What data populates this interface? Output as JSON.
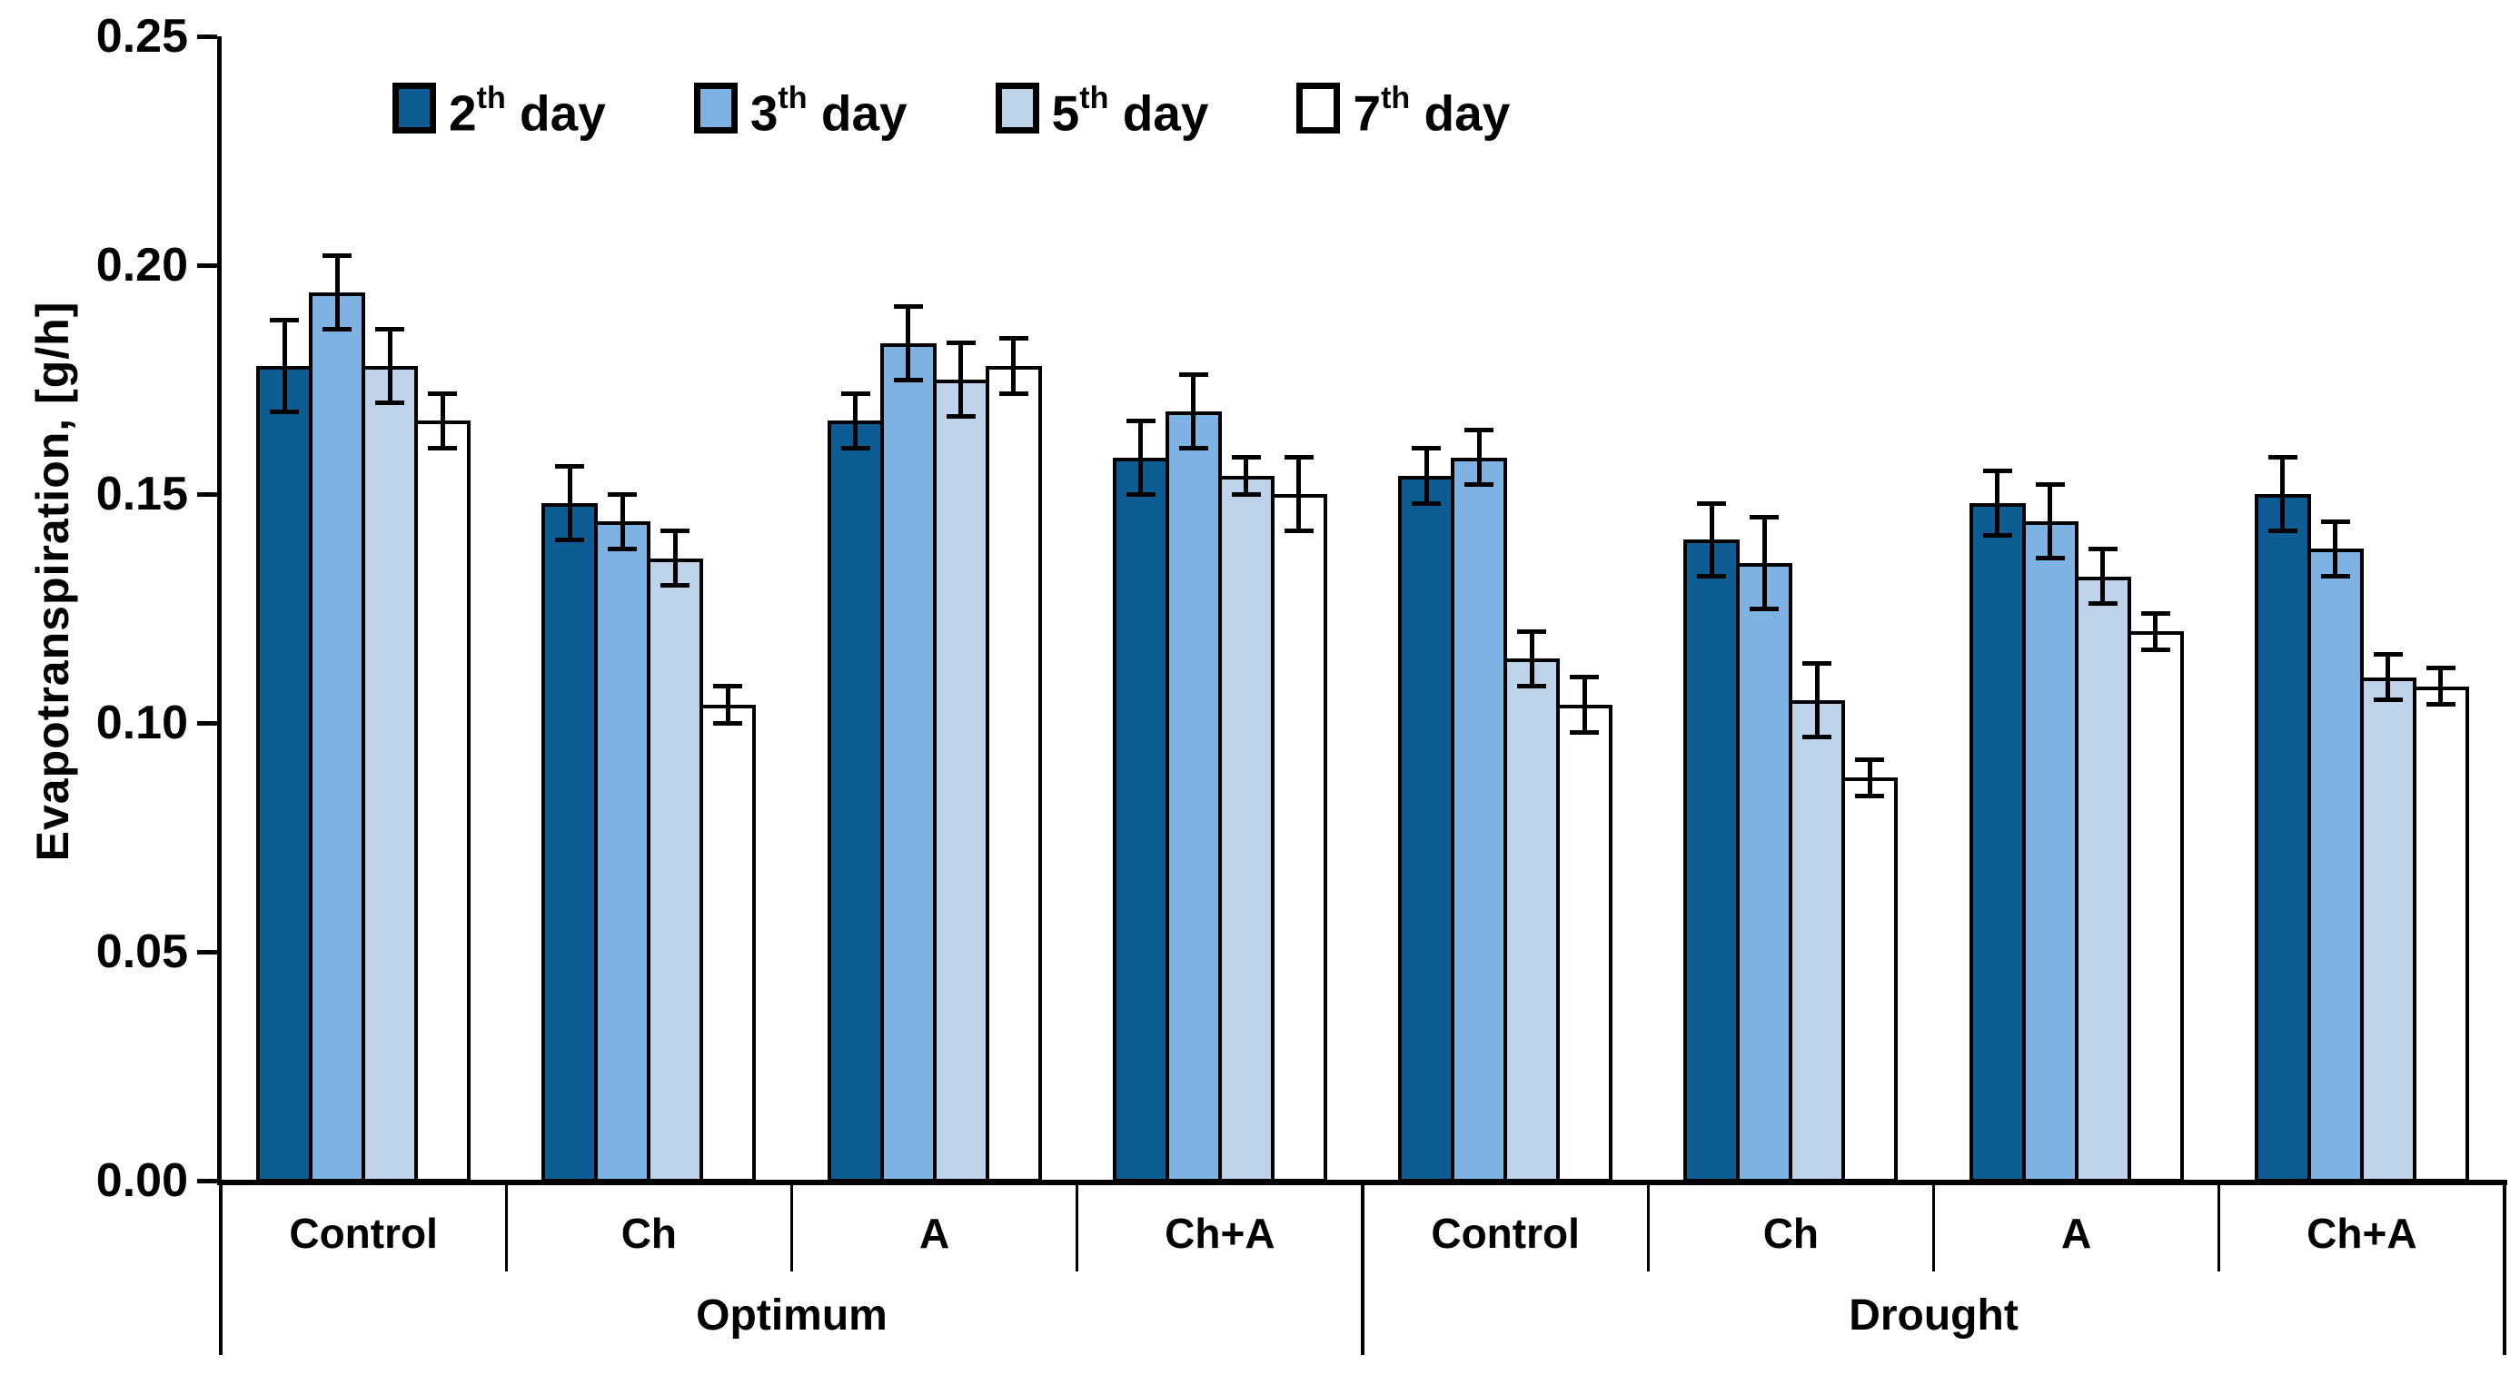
{
  "chart_data": {
    "type": "bar",
    "title": "",
    "ylabel": "Evapotranspiration, [g/h]",
    "ylim": [
      0,
      0.25
    ],
    "yticks": [
      "0.00",
      "0.05",
      "0.10",
      "0.15",
      "0.20",
      "0.25"
    ],
    "grid": false,
    "legend_position": "top",
    "categories": [
      "Control",
      "Ch",
      "A",
      "Ch+A",
      "Control",
      "Ch",
      "A",
      "Ch+A"
    ],
    "group_labels": [
      "Optimum",
      "Drought"
    ],
    "groups_span": [
      4,
      4
    ],
    "bar_border_color": "#000000",
    "series": [
      {
        "name": "2th day",
        "color": "#0e5c94",
        "values": [
          0.178,
          0.148,
          0.166,
          0.158,
          0.154,
          0.14,
          0.148,
          0.15
        ],
        "errors": [
          0.01,
          0.008,
          0.006,
          0.008,
          0.006,
          0.008,
          0.007,
          0.008
        ]
      },
      {
        "name": "3th day",
        "color": "#7eb2e3",
        "values": [
          0.194,
          0.144,
          0.183,
          0.168,
          0.158,
          0.135,
          0.144,
          0.138
        ],
        "errors": [
          0.008,
          0.006,
          0.008,
          0.008,
          0.006,
          0.01,
          0.008,
          0.006
        ]
      },
      {
        "name": "5th day",
        "color": "#bed3ea",
        "values": [
          0.178,
          0.136,
          0.175,
          0.154,
          0.114,
          0.105,
          0.132,
          0.11
        ],
        "errors": [
          0.008,
          0.006,
          0.008,
          0.004,
          0.006,
          0.008,
          0.006,
          0.005
        ]
      },
      {
        "name": "7th day",
        "color": "#ffffff",
        "values": [
          0.166,
          0.104,
          0.178,
          0.15,
          0.104,
          0.088,
          0.12,
          0.108
        ],
        "errors": [
          0.006,
          0.004,
          0.006,
          0.008,
          0.006,
          0.004,
          0.004,
          0.004
        ]
      }
    ]
  }
}
